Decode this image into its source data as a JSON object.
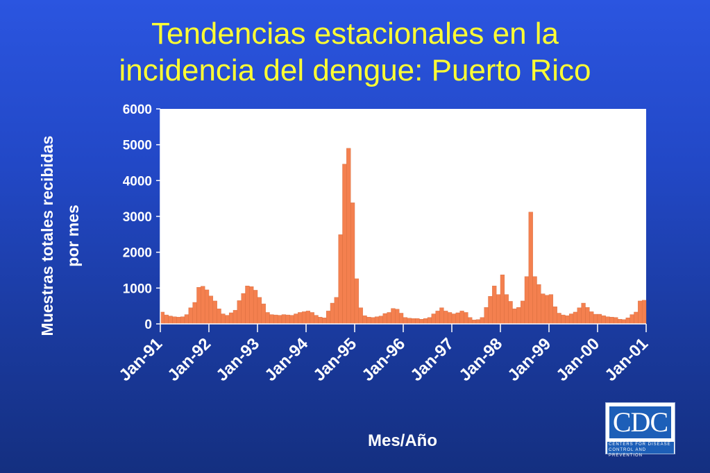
{
  "slide": {
    "title_line1": "Tendencias estacionales en la",
    "title_line2": "incidencia del dengue:  Puerto Rico"
  },
  "logo": {
    "mark": "CDC",
    "line1": "Centers for Disease",
    "line2": "Control and Prevention"
  },
  "colors": {
    "bar": "#f4804f",
    "bar_edge": "#d46a3c",
    "plot_bg": "#ffffff",
    "text": "#ffffff",
    "title": "#ffff33"
  },
  "chart_data": {
    "type": "bar",
    "xlabel": "Mes/Año",
    "ylabel_line1": "Muestras totales recibidas",
    "ylabel_line2": "por mes",
    "ylim": [
      0,
      6000
    ],
    "yticks": [
      "0",
      "1000",
      "2000",
      "3000",
      "4000",
      "5000",
      "6000"
    ],
    "x_tick_labels": [
      "Jan-91",
      "Jan-92",
      "Jan-93",
      "Jan-94",
      "Jan-95",
      "Jan-96",
      "Jan-97",
      "Jan-98",
      "Jan-99",
      "Jan-00",
      "Jan-01"
    ],
    "start": "Jan-91",
    "grid": false,
    "legend": "none",
    "values": [
      330,
      250,
      220,
      200,
      190,
      200,
      260,
      450,
      600,
      1020,
      1050,
      950,
      780,
      640,
      420,
      280,
      240,
      310,
      380,
      650,
      850,
      1060,
      1040,
      940,
      740,
      560,
      320,
      260,
      250,
      240,
      260,
      250,
      240,
      280,
      320,
      340,
      360,
      320,
      240,
      190,
      170,
      360,
      580,
      740,
      2490,
      4460,
      4900,
      3380,
      1260,
      450,
      230,
      190,
      180,
      200,
      220,
      290,
      320,
      430,
      410,
      300,
      180,
      160,
      150,
      150,
      130,
      150,
      180,
      280,
      360,
      450,
      360,
      320,
      280,
      310,
      360,
      320,
      180,
      110,
      120,
      180,
      460,
      770,
      1060,
      820,
      1370,
      820,
      630,
      420,
      460,
      640,
      1320,
      3120,
      1320,
      1100,
      840,
      800,
      820,
      480,
      300,
      250,
      230,
      280,
      330,
      450,
      580,
      460,
      340,
      270,
      270,
      230,
      200,
      190,
      180,
      130,
      120,
      170,
      260,
      330,
      640,
      660
    ]
  }
}
